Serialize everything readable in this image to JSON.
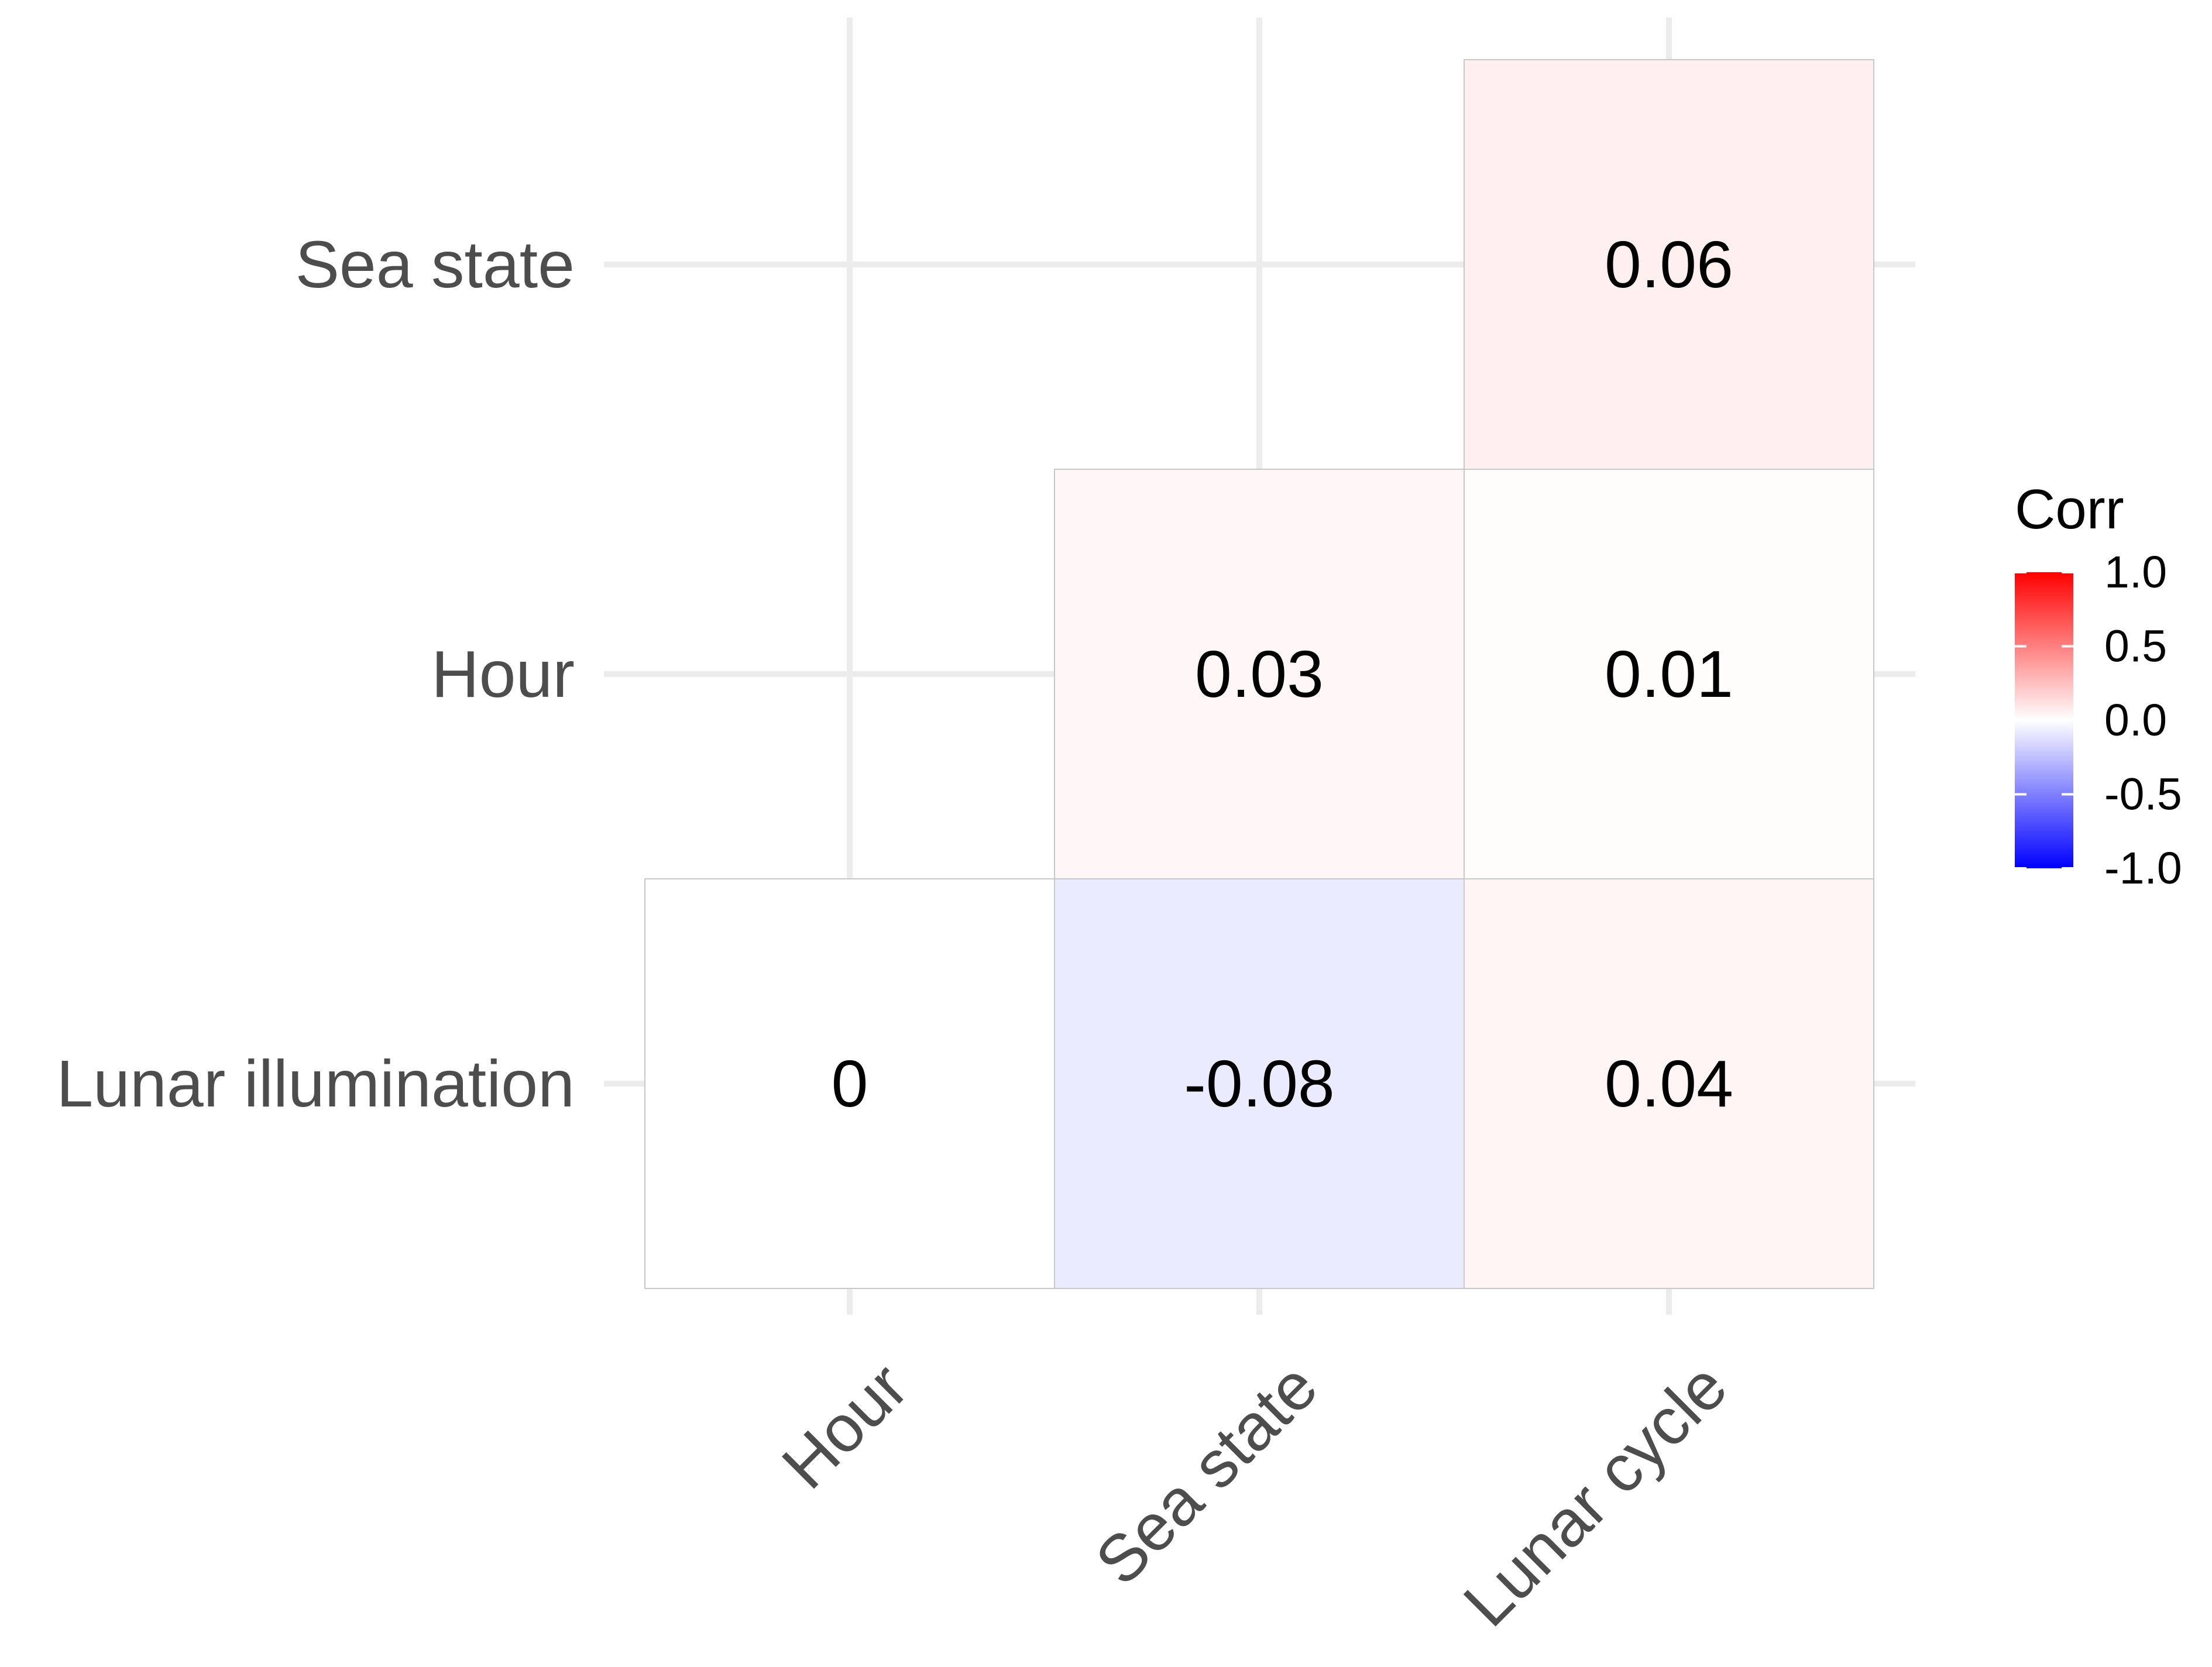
{
  "chart_data": {
    "type": "heatmap",
    "x_categories": [
      "Hour",
      "Sea state",
      "Lunar cycle"
    ],
    "y_categories": [
      "Lunar illumination",
      "Hour",
      "Sea state"
    ],
    "cells": [
      {
        "x": "Hour",
        "y": "Lunar illumination",
        "value": 0,
        "label": "0"
      },
      {
        "x": "Sea state",
        "y": "Lunar illumination",
        "value": -0.08,
        "label": "-0.08"
      },
      {
        "x": "Lunar cycle",
        "y": "Lunar illumination",
        "value": 0.04,
        "label": "0.04"
      },
      {
        "x": "Sea state",
        "y": "Hour",
        "value": 0.03,
        "label": "0.03"
      },
      {
        "x": "Lunar cycle",
        "y": "Hour",
        "value": 0.01,
        "label": "0.01"
      },
      {
        "x": "Lunar cycle",
        "y": "Sea state",
        "value": 0.06,
        "label": "0.06"
      }
    ],
    "legend": {
      "title": "Corr",
      "ticks": [
        "1.0",
        "0.5",
        "0.0",
        "-0.5",
        "-1.0"
      ],
      "tick_values": [
        1.0,
        0.5,
        0.0,
        -0.5,
        -1.0
      ],
      "range": [
        -1,
        1
      ],
      "placement": "right"
    },
    "colors": {
      "low": "#0000ff",
      "mid": "#ffffff",
      "high": "#ff0000",
      "gridline": "#ebebeb",
      "cell_border": "#c8c8c8"
    },
    "grid": true
  }
}
